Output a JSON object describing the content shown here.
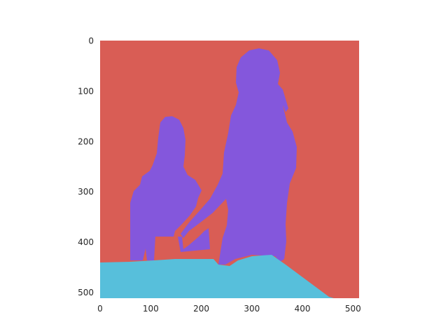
{
  "chart_data": {
    "type": "heatmap",
    "x_ticks": [
      "0",
      "100",
      "200",
      "300",
      "400",
      "500"
    ],
    "y_ticks": [
      "0",
      "100",
      "200",
      "300",
      "400",
      "500"
    ],
    "xlim": [
      0,
      512
    ],
    "ylim": [
      512,
      0
    ],
    "grid": false,
    "segments": [
      {
        "class": "background",
        "color": "#d95d55"
      },
      {
        "class": "person",
        "color": "#8457dc"
      },
      {
        "class": "floor",
        "color": "#57bfdb"
      }
    ]
  }
}
